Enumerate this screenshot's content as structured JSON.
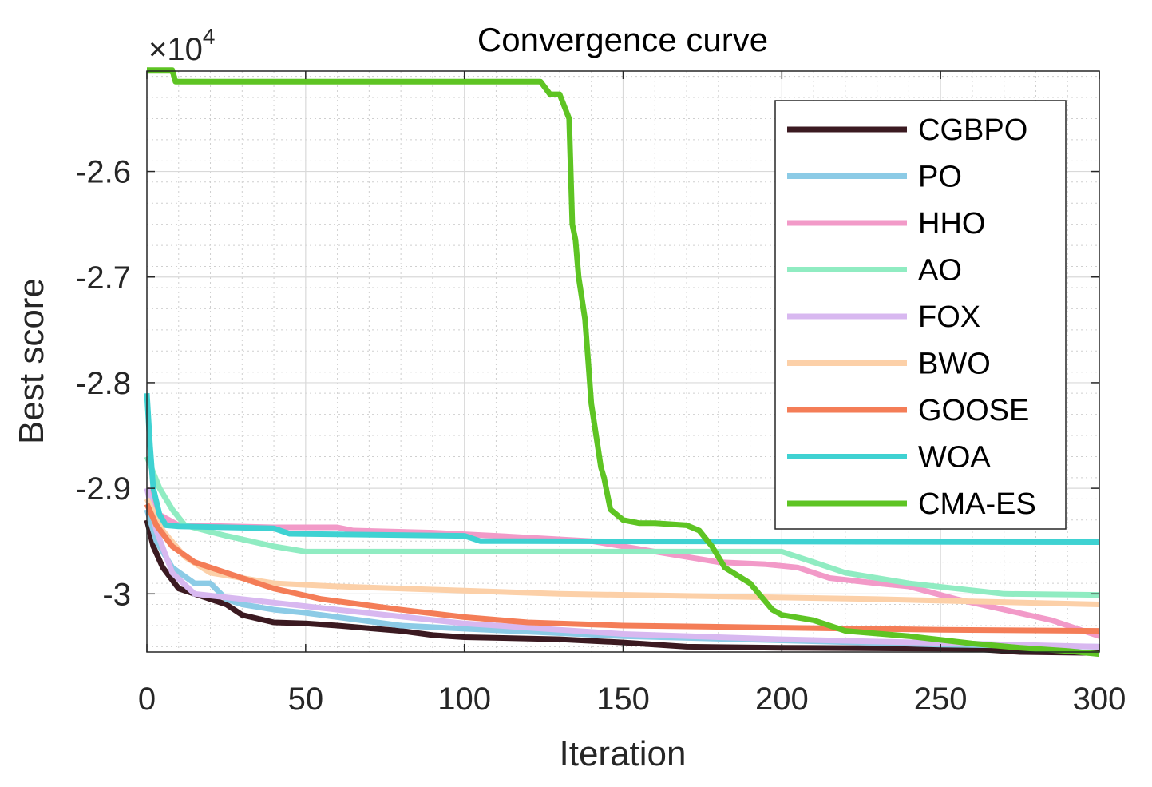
{
  "chart_data": {
    "type": "line",
    "title": "Convergence curve",
    "xlabel": "Iteration",
    "ylabel": "Best score",
    "exponent_label": "×10",
    "exponent_power": "4",
    "xlim": [
      0,
      300
    ],
    "ylim": [
      -3.055,
      -2.505
    ],
    "xticks": [
      0,
      50,
      100,
      150,
      200,
      250,
      300
    ],
    "xtick_labels": [
      "0",
      "50",
      "100",
      "150",
      "200",
      "250",
      "300"
    ],
    "yticks": [
      -3.0,
      -2.9,
      -2.8,
      -2.7,
      -2.6
    ],
    "ytick_labels": [
      "-3",
      "-2.9",
      "-2.8",
      "-2.7",
      "-2.6"
    ],
    "grid": true,
    "minor_grid": true,
    "legend_position": "top-right",
    "series": [
      {
        "name": "CGBPO",
        "color": "#3b1a21",
        "points": [
          [
            0,
            -2.93
          ],
          [
            2,
            -2.955
          ],
          [
            5,
            -2.975
          ],
          [
            10,
            -2.995
          ],
          [
            20,
            -3.005
          ],
          [
            25,
            -3.01
          ],
          [
            30,
            -3.02
          ],
          [
            40,
            -3.027
          ],
          [
            50,
            -3.028
          ],
          [
            60,
            -3.03
          ],
          [
            80,
            -3.035
          ],
          [
            90,
            -3.039
          ],
          [
            100,
            -3.041
          ],
          [
            130,
            -3.043
          ],
          [
            150,
            -3.046
          ],
          [
            170,
            -3.05
          ],
          [
            200,
            -3.051
          ],
          [
            260,
            -3.052
          ],
          [
            275,
            -3.055
          ],
          [
            300,
            -3.056
          ]
        ]
      },
      {
        "name": "PO",
        "color": "#8ccbe6",
        "points": [
          [
            0,
            -2.92
          ],
          [
            3,
            -2.95
          ],
          [
            8,
            -2.975
          ],
          [
            15,
            -2.99
          ],
          [
            20,
            -2.99
          ],
          [
            25,
            -3.005
          ],
          [
            30,
            -3.01
          ],
          [
            40,
            -3.015
          ],
          [
            50,
            -3.018
          ],
          [
            60,
            -3.022
          ],
          [
            80,
            -3.03
          ],
          [
            100,
            -3.033
          ],
          [
            150,
            -3.04
          ],
          [
            200,
            -3.044
          ],
          [
            250,
            -3.048
          ],
          [
            300,
            -3.05
          ]
        ]
      },
      {
        "name": "HHO",
        "color": "#f29ac8",
        "points": [
          [
            0,
            -2.9
          ],
          [
            4,
            -2.925
          ],
          [
            10,
            -2.935
          ],
          [
            40,
            -2.937
          ],
          [
            60,
            -2.937
          ],
          [
            65,
            -2.94
          ],
          [
            90,
            -2.942
          ],
          [
            110,
            -2.945
          ],
          [
            140,
            -2.95
          ],
          [
            160,
            -2.96
          ],
          [
            180,
            -2.97
          ],
          [
            195,
            -2.972
          ],
          [
            205,
            -2.975
          ],
          [
            215,
            -2.985
          ],
          [
            230,
            -2.99
          ],
          [
            240,
            -2.993
          ],
          [
            255,
            -3.005
          ],
          [
            270,
            -3.015
          ],
          [
            285,
            -3.025
          ],
          [
            295,
            -3.035
          ],
          [
            300,
            -3.04
          ]
        ]
      },
      {
        "name": "AO",
        "color": "#90ecc2",
        "points": [
          [
            0,
            -2.87
          ],
          [
            4,
            -2.9
          ],
          [
            8,
            -2.92
          ],
          [
            12,
            -2.935
          ],
          [
            25,
            -2.945
          ],
          [
            40,
            -2.955
          ],
          [
            50,
            -2.96
          ],
          [
            150,
            -2.96
          ],
          [
            200,
            -2.96
          ],
          [
            210,
            -2.97
          ],
          [
            220,
            -2.98
          ],
          [
            240,
            -2.99
          ],
          [
            255,
            -2.995
          ],
          [
            270,
            -3.0
          ],
          [
            300,
            -3.001
          ]
        ]
      },
      {
        "name": "FOX",
        "color": "#d8b8f0",
        "points": [
          [
            0,
            -2.9
          ],
          [
            3,
            -2.94
          ],
          [
            8,
            -2.98
          ],
          [
            15,
            -3.0
          ],
          [
            30,
            -3.005
          ],
          [
            60,
            -3.015
          ],
          [
            100,
            -3.028
          ],
          [
            150,
            -3.038
          ],
          [
            200,
            -3.043
          ],
          [
            300,
            -3.05
          ]
        ]
      },
      {
        "name": "BWO",
        "color": "#fcd0a8",
        "points": [
          [
            0,
            -2.91
          ],
          [
            5,
            -2.94
          ],
          [
            12,
            -2.965
          ],
          [
            20,
            -2.98
          ],
          [
            40,
            -2.99
          ],
          [
            60,
            -2.993
          ],
          [
            100,
            -2.997
          ],
          [
            130,
            -3.0
          ],
          [
            170,
            -3.002
          ],
          [
            230,
            -3.005
          ],
          [
            300,
            -3.01
          ]
        ]
      },
      {
        "name": "GOOSE",
        "color": "#f47d57",
        "points": [
          [
            0,
            -2.915
          ],
          [
            3,
            -2.935
          ],
          [
            8,
            -2.955
          ],
          [
            15,
            -2.97
          ],
          [
            25,
            -2.98
          ],
          [
            40,
            -2.995
          ],
          [
            55,
            -3.005
          ],
          [
            80,
            -3.015
          ],
          [
            100,
            -3.022
          ],
          [
            120,
            -3.027
          ],
          [
            150,
            -3.03
          ],
          [
            200,
            -3.032
          ],
          [
            250,
            -3.034
          ],
          [
            300,
            -3.035
          ]
        ]
      },
      {
        "name": "WOA",
        "color": "#3fd2d2",
        "points": [
          [
            0,
            -2.81
          ],
          [
            1,
            -2.86
          ],
          [
            2,
            -2.9
          ],
          [
            4,
            -2.925
          ],
          [
            6,
            -2.935
          ],
          [
            10,
            -2.936
          ],
          [
            40,
            -2.938
          ],
          [
            45,
            -2.943
          ],
          [
            100,
            -2.945
          ],
          [
            105,
            -2.95
          ],
          [
            300,
            -2.951
          ]
        ]
      },
      {
        "name": "CMA-ES",
        "color": "#5ec423",
        "points": [
          [
            0,
            -2.504
          ],
          [
            8,
            -2.504
          ],
          [
            9,
            -2.515
          ],
          [
            30,
            -2.515
          ],
          [
            124,
            -2.515
          ],
          [
            127,
            -2.527
          ],
          [
            130,
            -2.527
          ],
          [
            133,
            -2.55
          ],
          [
            134,
            -2.65
          ],
          [
            135,
            -2.665
          ],
          [
            136,
            -2.7
          ],
          [
            138,
            -2.74
          ],
          [
            139,
            -2.78
          ],
          [
            140,
            -2.82
          ],
          [
            141,
            -2.84
          ],
          [
            143,
            -2.88
          ],
          [
            144,
            -2.89
          ],
          [
            146,
            -2.92
          ],
          [
            150,
            -2.93
          ],
          [
            155,
            -2.933
          ],
          [
            160,
            -2.933
          ],
          [
            170,
            -2.935
          ],
          [
            174,
            -2.94
          ],
          [
            178,
            -2.955
          ],
          [
            182,
            -2.975
          ],
          [
            190,
            -2.99
          ],
          [
            197,
            -3.015
          ],
          [
            200,
            -3.02
          ],
          [
            210,
            -3.025
          ],
          [
            220,
            -3.035
          ],
          [
            240,
            -3.04
          ],
          [
            260,
            -3.047
          ],
          [
            275,
            -3.051
          ],
          [
            290,
            -3.054
          ],
          [
            300,
            -3.057
          ]
        ]
      }
    ]
  }
}
